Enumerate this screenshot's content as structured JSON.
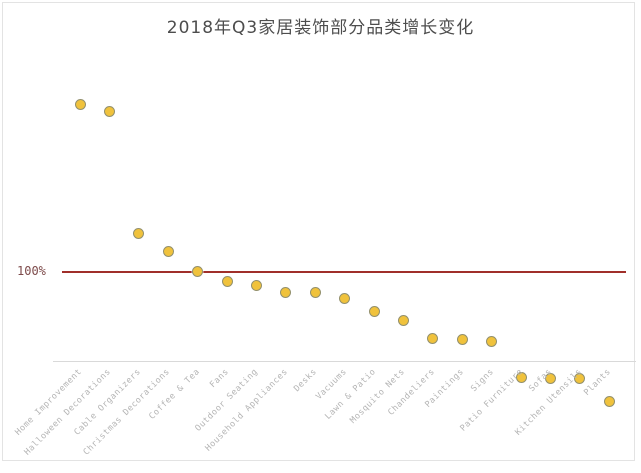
{
  "chart_data": {
    "type": "scatter",
    "title": "2018年Q3家居装饰部分品类增长变化",
    "categories": [
      "Home Improvement",
      "Halloween Decorations",
      "Cable Organizers",
      "Christmas Decorations",
      "Coffee & Tea",
      "Fans",
      "Outdoor Seating",
      "Household Appliances",
      "Desks",
      "Vacuums",
      "Lawn & Patio",
      "Mosquito Nets",
      "Chandeliers",
      "Paintings",
      "Signs",
      "Patio Furniture",
      "Sofas",
      "Kitchen Utensils",
      "Plants"
    ],
    "values": [
      287,
      279,
      142,
      122,
      100,
      89,
      84,
      76,
      76,
      70,
      55,
      45,
      25,
      24,
      22,
      -18,
      -19,
      -20,
      -45
    ],
    "ylabel": "",
    "xlabel": "",
    "ylim": [
      -60,
      320
    ],
    "grid": false,
    "legend": null,
    "reference_line": {
      "label": "100%",
      "value": 100,
      "color": "#a02f2a"
    },
    "marker": {
      "fill_color": "#f0c23c",
      "border_color": "#93906c"
    },
    "axis_color": "#d9d9d9",
    "label_color": "#b5b5b5",
    "title_color": "#4d4d4d"
  }
}
